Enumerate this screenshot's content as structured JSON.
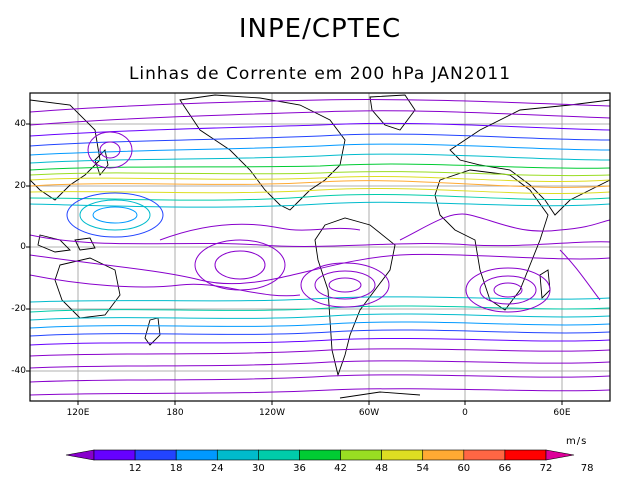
{
  "title": "INPE/CPTEC",
  "subtitle": "Linhas de Corrente em 200 hPa JAN2011",
  "map": {
    "y_ticks": [
      "40",
      "20",
      "0",
      "-20",
      "-40"
    ],
    "x_ticks": [
      "120E",
      "180",
      "120W",
      "60W",
      "0",
      "60E"
    ]
  },
  "colorbar": {
    "units": "m/s",
    "labels": [
      "12",
      "18",
      "24",
      "30",
      "36",
      "42",
      "48",
      "54",
      "60",
      "66",
      "72",
      "78"
    ],
    "colors": [
      "#8800cc",
      "#6600ff",
      "#2244ff",
      "#0099ff",
      "#00bbcc",
      "#00ccaa",
      "#00cc33",
      "#99dd22",
      "#dddd22",
      "#ffaa33",
      "#ff6644",
      "#ff0000",
      "#dd0099"
    ]
  }
}
